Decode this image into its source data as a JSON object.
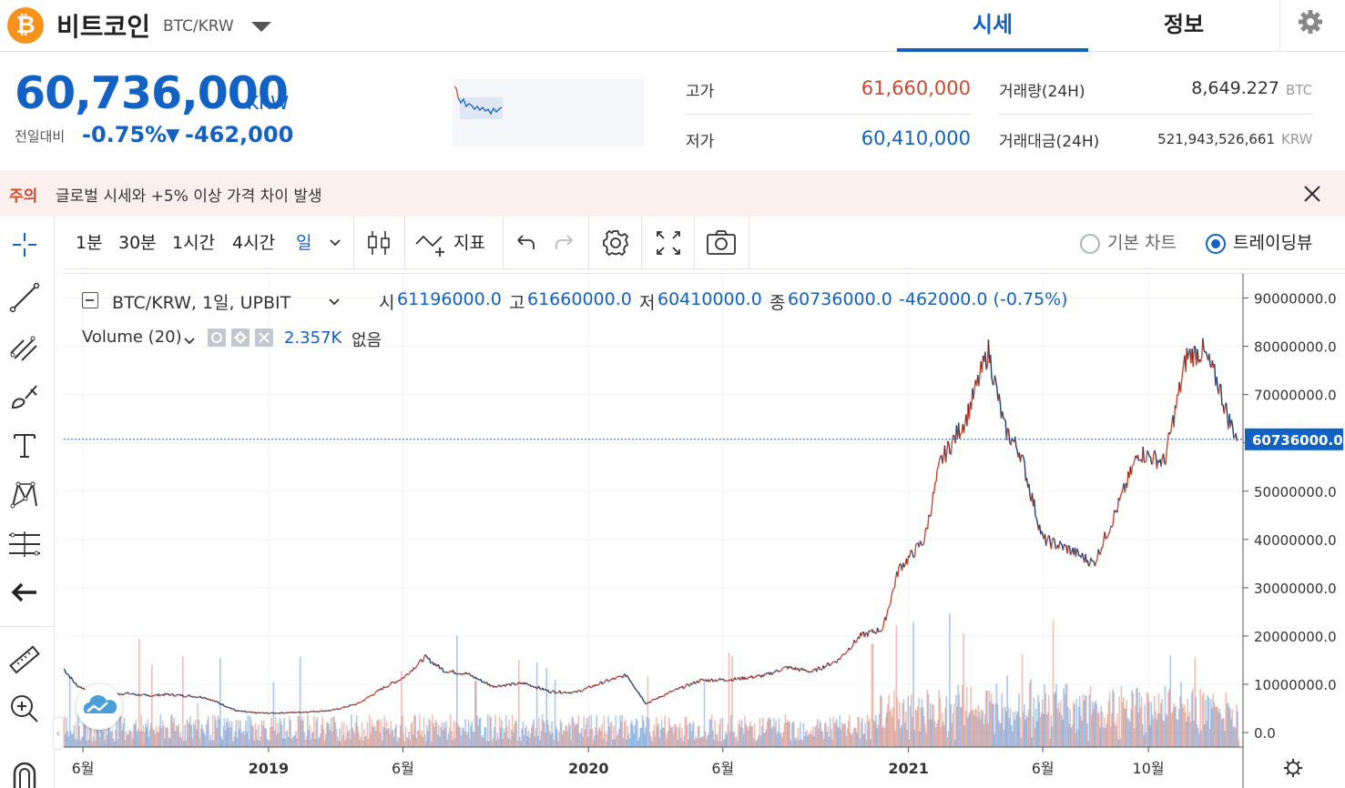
{
  "header": {
    "coin_symbol_glyph": "₿",
    "coin_name": "비트코인",
    "coin_pair": "BTC/KRW",
    "tabs": [
      {
        "label": "시세",
        "active": true
      },
      {
        "label": "정보",
        "active": false
      }
    ]
  },
  "summary": {
    "price": "60,736,000",
    "unit": "KRW",
    "change_label": "전일대비",
    "change_rate": "-0.75%",
    "change_arrow": "▼",
    "change_amount": "-462,000"
  },
  "stats": {
    "high_label": "고가",
    "high_value": "61,660,000",
    "low_label": "저가",
    "low_value": "60,410,000",
    "volume_label": "거래량(24H)",
    "volume_value": "8,649.227",
    "volume_unit": "BTC",
    "amount_label": "거래대금(24H)",
    "amount_value": "521,943,526,661",
    "amount_unit": "KRW"
  },
  "notice": {
    "tag": "주의",
    "text": "글로벌 시세와 +5% 이상 가격 차이 발생"
  },
  "toolbar": {
    "intervals": [
      "1분",
      "30분",
      "1시간",
      "4시간",
      "일"
    ],
    "active_interval": "일",
    "indicator_label": "지표",
    "basic_chart_label": "기본 차트",
    "tradingview_label": "트레이딩뷰",
    "selected_view": "트레이딩뷰"
  },
  "legend": {
    "symbol": "BTC/KRW, 1일, UPBIT",
    "open_label": "시",
    "open": "61196000.0",
    "high_label": "고",
    "high": "61660000.0",
    "low_label": "저",
    "low": "60410000.0",
    "close_label": "종",
    "close": "60736000.0",
    "change": "-462000.0 (-0.75%)",
    "volume_label": "Volume (20)",
    "volume_value": "2.357K",
    "volume_extra": "없음"
  },
  "colors": {
    "accent": "#1261c4",
    "up": "#c84a31",
    "down": "#1261c4",
    "notice_bg": "#fbf0ee",
    "coin_orange": "#f7931a"
  },
  "chart_data": {
    "type": "line",
    "series": [
      {
        "values": [
          [
            2018.36,
            13200000
          ],
          [
            2018.4,
            9800000
          ],
          [
            2018.44,
            8600000
          ],
          [
            2018.48,
            9300000
          ],
          [
            2018.52,
            8000000
          ],
          [
            2018.56,
            8100000
          ],
          [
            2018.62,
            7600000
          ],
          [
            2018.68,
            7900000
          ],
          [
            2018.75,
            7600000
          ],
          [
            2018.8,
            7300000
          ],
          [
            2018.85,
            6000000
          ],
          [
            2018.9,
            4500000
          ],
          [
            2018.95,
            4100000
          ],
          [
            2019.0,
            4000000
          ],
          [
            2019.1,
            4200000
          ],
          [
            2019.2,
            4600000
          ],
          [
            2019.28,
            6000000
          ],
          [
            2019.36,
            9300000
          ],
          [
            2019.42,
            11300000
          ],
          [
            2019.49,
            15600000
          ],
          [
            2019.55,
            12800000
          ],
          [
            2019.62,
            12200000
          ],
          [
            2019.7,
            9600000
          ],
          [
            2019.8,
            10200000
          ],
          [
            2019.88,
            8500000
          ],
          [
            2019.96,
            8300000
          ],
          [
            2020.05,
            10500000
          ],
          [
            2020.12,
            11900000
          ],
          [
            2020.18,
            6000000
          ],
          [
            2020.25,
            8200000
          ],
          [
            2020.35,
            10800000
          ],
          [
            2020.45,
            11000000
          ],
          [
            2020.55,
            11800000
          ],
          [
            2020.62,
            13500000
          ],
          [
            2020.7,
            12600000
          ],
          [
            2020.78,
            15000000
          ],
          [
            2020.85,
            20000000
          ],
          [
            2020.92,
            21500000
          ],
          [
            2020.97,
            34000000
          ],
          [
            2021.0,
            36000000
          ],
          [
            2021.05,
            40000000
          ],
          [
            2021.1,
            56000000
          ],
          [
            2021.18,
            65000000
          ],
          [
            2021.25,
            79000000
          ],
          [
            2021.3,
            63000000
          ],
          [
            2021.35,
            58000000
          ],
          [
            2021.42,
            40000000
          ],
          [
            2021.5,
            38000000
          ],
          [
            2021.58,
            35000000
          ],
          [
            2021.65,
            46000000
          ],
          [
            2021.72,
            58000000
          ],
          [
            2021.8,
            56000000
          ],
          [
            2021.87,
            78000000
          ],
          [
            2021.92,
            79000000
          ],
          [
            2021.97,
            72000000
          ],
          [
            2022.0,
            65000000
          ],
          [
            2022.03,
            60736000
          ]
        ]
      }
    ],
    "x_ticks": [
      "6월",
      "2019",
      "6월",
      "2020",
      "6월",
      "2021",
      "6월",
      "10월"
    ],
    "y_ticks": [
      "90000000.0",
      "80000000.0",
      "70000000.0",
      "60000000.0",
      "50000000.0",
      "40000000.0",
      "30000000.0",
      "20000000.0",
      "10000000.0",
      "0.0"
    ],
    "ylim": [
      -3000000,
      95000000
    ],
    "last_price_label": "60736000.0",
    "last_price": 60736000,
    "grid": true,
    "volume_bars": true
  }
}
